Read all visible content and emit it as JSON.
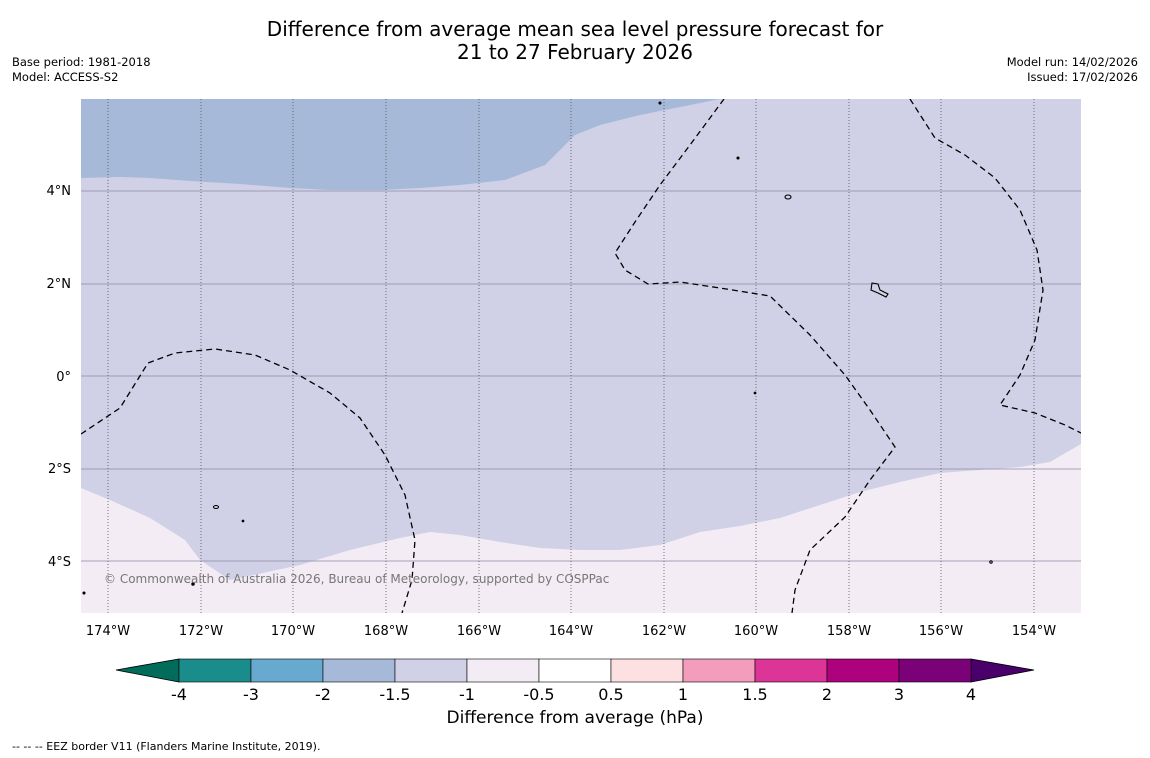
{
  "header": {
    "title_line1": "Difference from average mean sea level pressure forecast for",
    "title_line2": "21 to 27 February 2026",
    "base_period": "Base period: 1981-2018",
    "model": "Model: ACCESS-S2",
    "model_run": "Model run: 14/02/2026",
    "issued": "Issued: 17/02/2026"
  },
  "map": {
    "lon_labels": [
      "174°W",
      "172°W",
      "170°W",
      "168°W",
      "166°W",
      "164°W",
      "162°W",
      "160°W",
      "158°W",
      "156°W",
      "154°W"
    ],
    "lat_labels": [
      "4°N",
      "2°N",
      "0°",
      "2°S",
      "4°S"
    ],
    "copyright": "© Commonwealth of Australia 2026, Bureau of Meteorology, supported by COSPPac",
    "colors": {
      "band_m2_m15": "#a7b9d8",
      "band_m15_m1": "#d0d1e6",
      "band_m1_m05": "#f4ecf5"
    }
  },
  "colorbar": {
    "title": "Difference from average (hPa)",
    "tick_labels": [
      "-4",
      "-3",
      "-2",
      "-1.5",
      "-1",
      "-0.5",
      "0.5",
      "1",
      "1.5",
      "2",
      "3",
      "4"
    ],
    "colors": [
      "#1a8c8c",
      "#67a9cf",
      "#a7b9d8",
      "#d0d1e6",
      "#f4ecf5",
      "#ffffff",
      "#fde0e2",
      "#f49cbb",
      "#dd3497",
      "#ae017e",
      "#7a0177"
    ],
    "low_extend_color": "#016c59",
    "high_extend_color": "#49006a"
  },
  "footnote": "--  --  -- EEZ border V11 (Flanders Marine Institute, 2019)."
}
